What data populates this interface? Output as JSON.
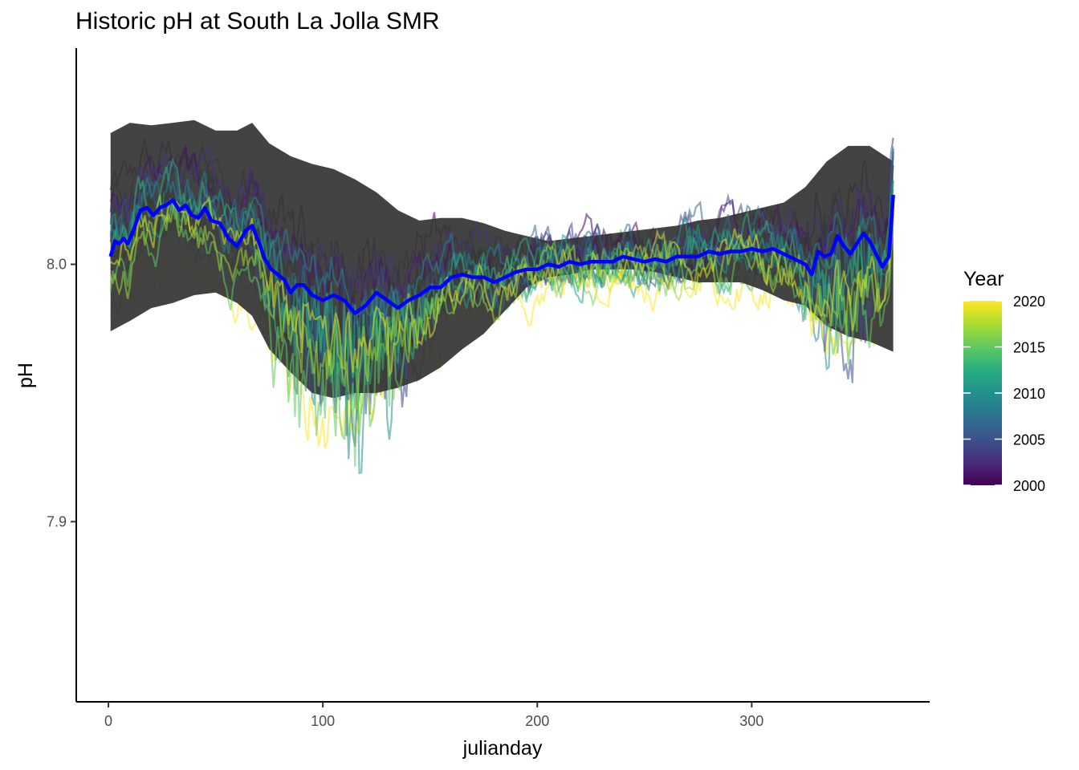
{
  "chart_data": {
    "type": "line",
    "title": "Historic pH at South La Jolla SMR",
    "xlabel": "julianday",
    "ylabel": "pH",
    "xlim": [
      -15,
      383
    ],
    "ylim": [
      7.83,
      8.084
    ],
    "x_ticks": [
      0,
      100,
      200,
      300
    ],
    "x_tick_labels": [
      "0",
      "100",
      "200",
      "300"
    ],
    "y_ticks": [
      7.9,
      8.0
    ],
    "y_tick_labels": [
      "7.9",
      "8.0"
    ],
    "grid": false,
    "legend": {
      "title": "Year",
      "position": "right",
      "type": "colorbar",
      "range": [
        2000,
        2020
      ],
      "labels": [
        "2020",
        "2015",
        "2010",
        "2005",
        "2000"
      ],
      "palette": "viridis"
    },
    "year_range": [
      2000,
      2020
    ],
    "band": {
      "description_role": "shaded band (dark gray)",
      "color": "#333333",
      "x": [
        1,
        10,
        20,
        30,
        40,
        50,
        60,
        67,
        75,
        85,
        95,
        105,
        115,
        125,
        135,
        145,
        155,
        165,
        175,
        185,
        195,
        205,
        215,
        225,
        235,
        245,
        255,
        265,
        275,
        285,
        295,
        305,
        315,
        325,
        335,
        345,
        355,
        366
      ],
      "upper": [
        8.051,
        8.055,
        8.054,
        8.055,
        8.056,
        8.052,
        8.052,
        8.055,
        8.047,
        8.042,
        8.039,
        8.037,
        8.033,
        8.028,
        8.021,
        8.017,
        8.018,
        8.018,
        8.016,
        8.013,
        8.011,
        8.009,
        8.01,
        8.011,
        8.012,
        8.013,
        8.014,
        8.015,
        8.017,
        8.018,
        8.02,
        8.022,
        8.024,
        8.03,
        8.04,
        8.046,
        8.046,
        8.04
      ],
      "lower": [
        7.974,
        7.978,
        7.983,
        7.985,
        7.988,
        7.989,
        7.985,
        7.98,
        7.967,
        7.958,
        7.95,
        7.948,
        7.95,
        7.95,
        7.952,
        7.955,
        7.96,
        7.967,
        7.973,
        7.982,
        7.991,
        7.995,
        7.996,
        7.998,
        7.998,
        7.998,
        7.997,
        7.995,
        7.993,
        7.993,
        7.993,
        7.99,
        7.986,
        7.984,
        7.976,
        7.972,
        7.97,
        7.966
      ]
    },
    "mean": {
      "description_role": "bold mean line",
      "color": "#0000ff",
      "x": [
        1,
        3,
        5,
        7,
        9,
        12,
        15,
        18,
        21,
        24,
        27,
        30,
        33,
        36,
        39,
        42,
        45,
        48,
        52,
        56,
        60,
        64,
        67,
        70,
        73,
        76,
        79,
        82,
        85,
        88,
        91,
        95,
        100,
        105,
        110,
        115,
        120,
        125,
        130,
        135,
        140,
        145,
        150,
        155,
        160,
        165,
        170,
        175,
        180,
        185,
        190,
        195,
        200,
        205,
        210,
        215,
        220,
        225,
        230,
        235,
        240,
        245,
        250,
        255,
        260,
        265,
        270,
        275,
        280,
        285,
        290,
        295,
        300,
        305,
        310,
        315,
        320,
        325,
        328,
        331,
        334,
        337,
        340,
        343,
        346,
        349,
        352,
        355,
        358,
        361,
        364,
        366
      ],
      "y": [
        8.003,
        8.009,
        8.008,
        8.01,
        8.008,
        8.014,
        8.021,
        8.022,
        8.019,
        8.022,
        8.023,
        8.025,
        8.021,
        8.023,
        8.019,
        8.018,
        8.022,
        8.017,
        8.016,
        8.01,
        8.007,
        8.013,
        8.015,
        8.009,
        8.002,
        7.998,
        7.996,
        7.994,
        7.989,
        7.992,
        7.992,
        7.988,
        7.986,
        7.988,
        7.986,
        7.981,
        7.984,
        7.989,
        7.986,
        7.983,
        7.986,
        7.988,
        7.991,
        7.991,
        7.995,
        7.996,
        7.995,
        7.995,
        7.993,
        7.995,
        7.997,
        7.998,
        7.998,
        8.0,
        7.999,
        8.001,
        8.0,
        8.001,
        8.001,
        8.001,
        8.003,
        8.002,
        8.001,
        8.002,
        8.001,
        8.003,
        8.003,
        8.003,
        8.005,
        8.004,
        8.005,
        8.005,
        8.006,
        8.005,
        8.006,
        8.004,
        8.002,
        8.0,
        7.996,
        8.005,
        8.003,
        8.004,
        8.011,
        8.007,
        8.004,
        8.008,
        8.012,
        8.009,
        8.004,
        7.999,
        8.003,
        8.027
      ]
    },
    "series_note": "21 yearly series, one per year 2000–2020, colored by Year (viridis); values approximate"
  }
}
